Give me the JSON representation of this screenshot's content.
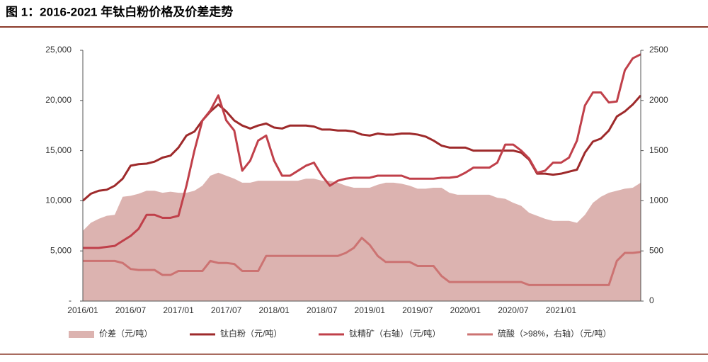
{
  "chart_data": {
    "type": "line",
    "title": "图 1：2016-2021 年钛白粉价格及价差走势",
    "categories": [
      "2016/01",
      null,
      null,
      null,
      null,
      null,
      "2016/07",
      null,
      null,
      null,
      null,
      null,
      "2017/01",
      null,
      null,
      null,
      null,
      null,
      "2017/07",
      null,
      null,
      null,
      null,
      null,
      "2018/01",
      null,
      null,
      null,
      null,
      null,
      "2018/07",
      null,
      null,
      null,
      null,
      null,
      "2019/01",
      null,
      null,
      null,
      null,
      null,
      "2019/07",
      null,
      null,
      null,
      null,
      null,
      "2020/01",
      null,
      null,
      null,
      null,
      null,
      "2020/07",
      null,
      null,
      null,
      null,
      null,
      "2021/01",
      null,
      null,
      null,
      null,
      null,
      null,
      null,
      null,
      null,
      null
    ],
    "ylim": [
      0,
      25000
    ],
    "yticks": [
      {
        "value": 0,
        "label": "-"
      },
      {
        "value": 5000,
        "label": "5,000"
      },
      {
        "value": 10000,
        "label": "10,000"
      },
      {
        "value": 15000,
        "label": "15,000"
      },
      {
        "value": 20000,
        "label": "20,000"
      },
      {
        "value": 25000,
        "label": "25,000"
      }
    ],
    "y2lim": [
      0,
      2500
    ],
    "y2ticks": [
      0,
      500,
      1000,
      1500,
      2000,
      2500
    ],
    "series": [
      {
        "name": "价差（元/吨）",
        "type": "area",
        "color": "#dcb3b0",
        "values": [
          7000,
          7800,
          8200,
          8500,
          8600,
          10400,
          10500,
          10700,
          11000,
          11000,
          10800,
          10900,
          10800,
          10800,
          11000,
          11500,
          12500,
          12800,
          12500,
          12200,
          11800,
          11800,
          12000,
          12000,
          12000,
          12000,
          12000,
          12000,
          12200,
          12200,
          12000,
          12000,
          11800,
          11500,
          11300,
          11300,
          11300,
          11600,
          11800,
          11800,
          11700,
          11500,
          11200,
          11200,
          11300,
          11300,
          10800,
          10600,
          10600,
          10600,
          10600,
          10600,
          10300,
          10200,
          9800,
          9500,
          8800,
          8500,
          8200,
          8000,
          8000,
          8000,
          7800,
          8600,
          9800,
          10400,
          10800,
          11000,
          11200,
          11300,
          11800
        ]
      },
      {
        "name": "钛白粉（元/吨）",
        "color": "#9e2a2b",
        "values": [
          10000,
          10700,
          11000,
          11100,
          11500,
          12200,
          13500,
          13650,
          13700,
          13900,
          14300,
          14500,
          15300,
          16500,
          16900,
          18000,
          18900,
          19600,
          18900,
          18000,
          17500,
          17200,
          17500,
          17700,
          17300,
          17200,
          17500,
          17500,
          17500,
          17400,
          17100,
          17100,
          17000,
          17000,
          16900,
          16600,
          16500,
          16700,
          16600,
          16600,
          16700,
          16700,
          16600,
          16400,
          16000,
          15500,
          15300,
          15300,
          15300,
          15000,
          15000,
          15000,
          15000,
          15000,
          15000,
          14800,
          14100,
          12700,
          12700,
          12600,
          12700,
          12900,
          13100,
          14800,
          15900,
          16200,
          17000,
          18400,
          18900,
          19600,
          20500
        ]
      },
      {
        "name": "钛精矿（右轴）（元/吨）",
        "axis": "y2",
        "color": "#c0404a",
        "values": [
          530,
          530,
          530,
          540,
          550,
          600,
          650,
          720,
          860,
          860,
          830,
          830,
          850,
          1150,
          1500,
          1800,
          1900,
          2050,
          1800,
          1700,
          1300,
          1400,
          1600,
          1650,
          1400,
          1250,
          1250,
          1300,
          1350,
          1380,
          1250,
          1150,
          1200,
          1220,
          1230,
          1230,
          1230,
          1250,
          1250,
          1250,
          1250,
          1220,
          1220,
          1220,
          1220,
          1230,
          1230,
          1240,
          1280,
          1330,
          1330,
          1330,
          1380,
          1560,
          1560,
          1500,
          1420,
          1280,
          1300,
          1380,
          1380,
          1430,
          1600,
          1950,
          2080,
          2080,
          1980,
          1990,
          2300,
          2420,
          2460
        ]
      },
      {
        "name": "硫酸（>98%，右轴）（元/吨）",
        "axis": "y2",
        "color": "#cc7372",
        "values": [
          400,
          400,
          400,
          400,
          400,
          380,
          320,
          310,
          310,
          310,
          260,
          260,
          300,
          300,
          300,
          300,
          400,
          380,
          380,
          370,
          300,
          300,
          300,
          450,
          450,
          450,
          450,
          450,
          450,
          450,
          450,
          450,
          450,
          480,
          530,
          630,
          560,
          450,
          390,
          390,
          390,
          390,
          350,
          350,
          350,
          250,
          190,
          190,
          190,
          190,
          190,
          190,
          190,
          190,
          190,
          190,
          160,
          160,
          160,
          160,
          160,
          160,
          160,
          160,
          160,
          160,
          160,
          400,
          480,
          480,
          490
        ]
      }
    ]
  }
}
